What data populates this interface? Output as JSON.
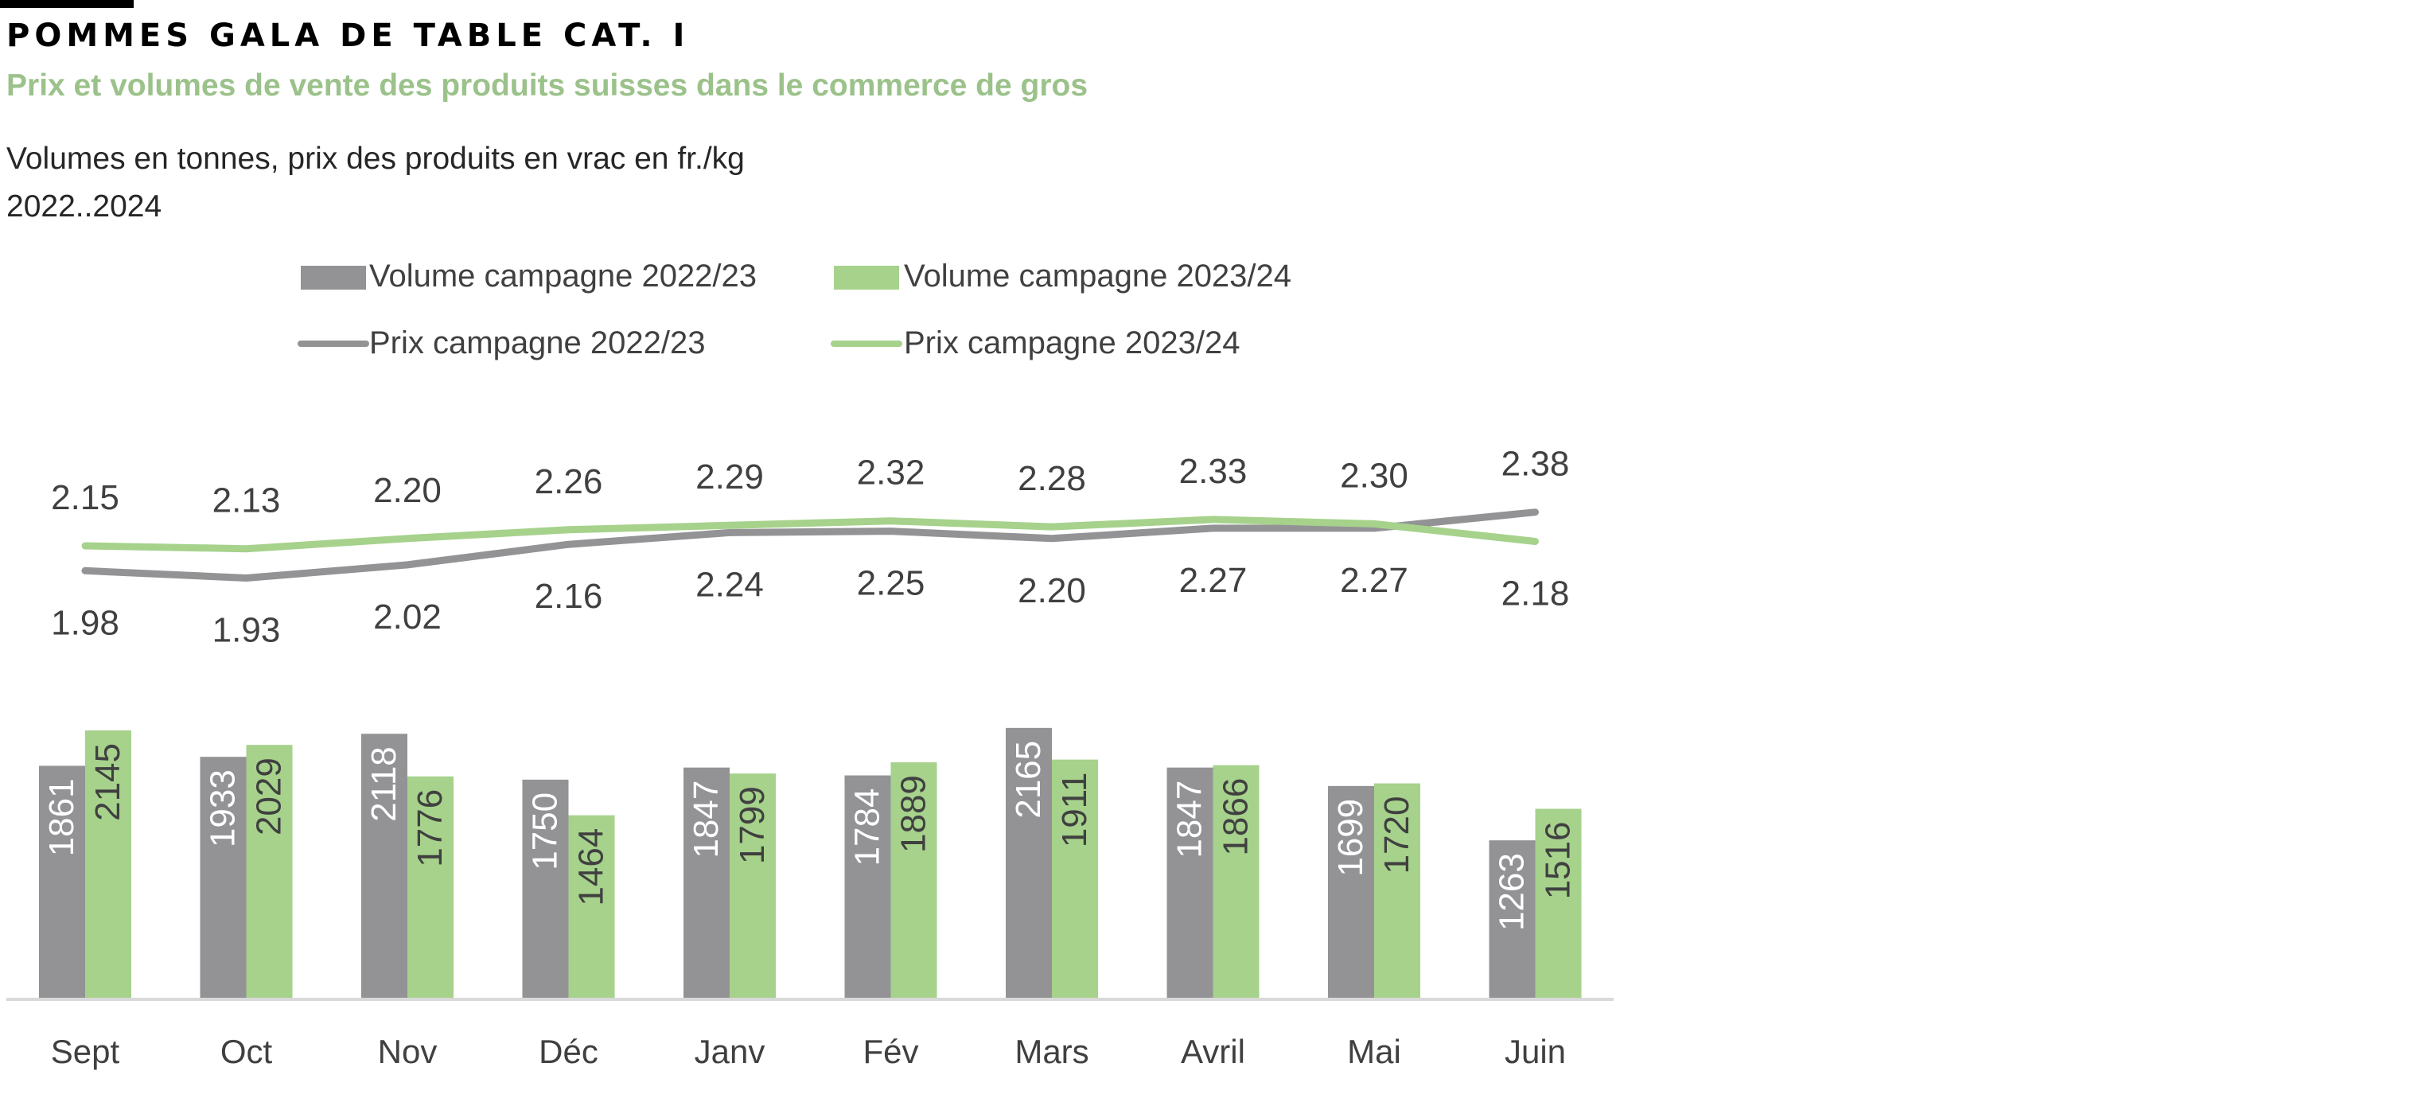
{
  "header": {
    "title": "POMMES GALA DE TABLE CAT. I",
    "subtitle": "Prix et volumes de vente des produits suisses dans le commerce de gros",
    "units_note": "Volumes en tonnes, prix des produits en vrac en fr./kg",
    "period": "2022..2024"
  },
  "colors": {
    "grey_series": "#939396",
    "green_series": "#A6D28C",
    "subtitle": "#9BC28A",
    "axis": "#D9D9D9",
    "text": "#404040"
  },
  "chart_data": {
    "type": "bar+line",
    "categories": [
      "Sept",
      "Oct",
      "Nov",
      "Déc",
      "Janv",
      "Fév",
      "Mars",
      "Avril",
      "Mai",
      "Juin"
    ],
    "bar_series": [
      {
        "name": "Volume campagne 2022/23",
        "color": "#939396",
        "values": [
          1861,
          1933,
          2118,
          1750,
          1847,
          1784,
          2165,
          1847,
          1699,
          1263
        ]
      },
      {
        "name": "Volume campagne 2023/24",
        "color": "#A6D28C",
        "values": [
          2145,
          2029,
          1776,
          1464,
          1799,
          1889,
          1911,
          1866,
          1720,
          1516
        ]
      }
    ],
    "line_series": [
      {
        "name": "Prix campagne 2022/23",
        "color": "#939396",
        "values": [
          1.98,
          1.93,
          2.02,
          2.16,
          2.24,
          2.25,
          2.2,
          2.27,
          2.27,
          2.38
        ]
      },
      {
        "name": "Prix campagne 2023/24",
        "color": "#A6D28C",
        "values": [
          2.15,
          2.13,
          2.2,
          2.26,
          2.29,
          2.32,
          2.28,
          2.33,
          2.3,
          2.18
        ]
      }
    ],
    "volume_unit": "tonnes",
    "price_unit": "fr./kg",
    "legend_position": "top",
    "grid": false
  }
}
